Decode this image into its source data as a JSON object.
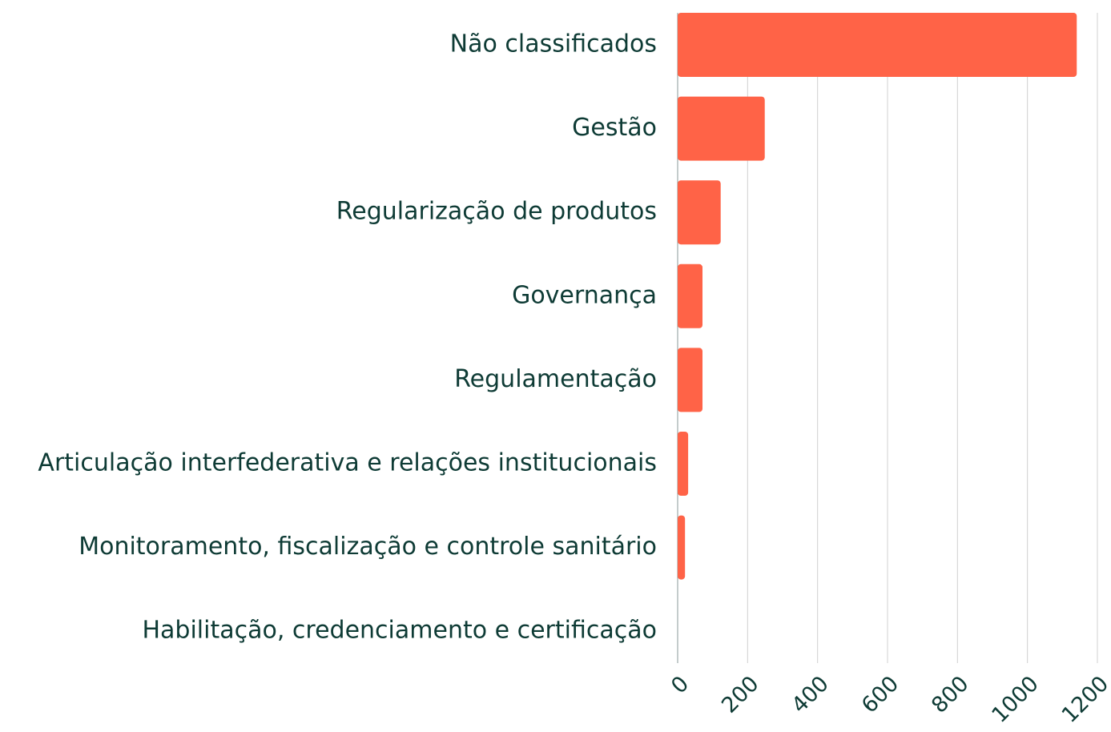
{
  "chart_data": {
    "type": "bar",
    "orientation": "horizontal",
    "categories": [
      "Não classificados",
      "Gestão",
      "Regularização de produtos",
      "Governança",
      "Regulamentação",
      "Articulação interfederativa e relações institucionais",
      "Monitoramento, fiscalização e controle sanitário",
      "Habilitação, credenciamento e certificação"
    ],
    "values": [
      1141,
      249,
      123,
      71,
      71,
      30,
      21,
      0
    ],
    "color": "#ff6347",
    "xlim": [
      0,
      1200
    ],
    "xticks": [
      0,
      200,
      400,
      600,
      800,
      1000,
      1200
    ],
    "grid": true
  }
}
